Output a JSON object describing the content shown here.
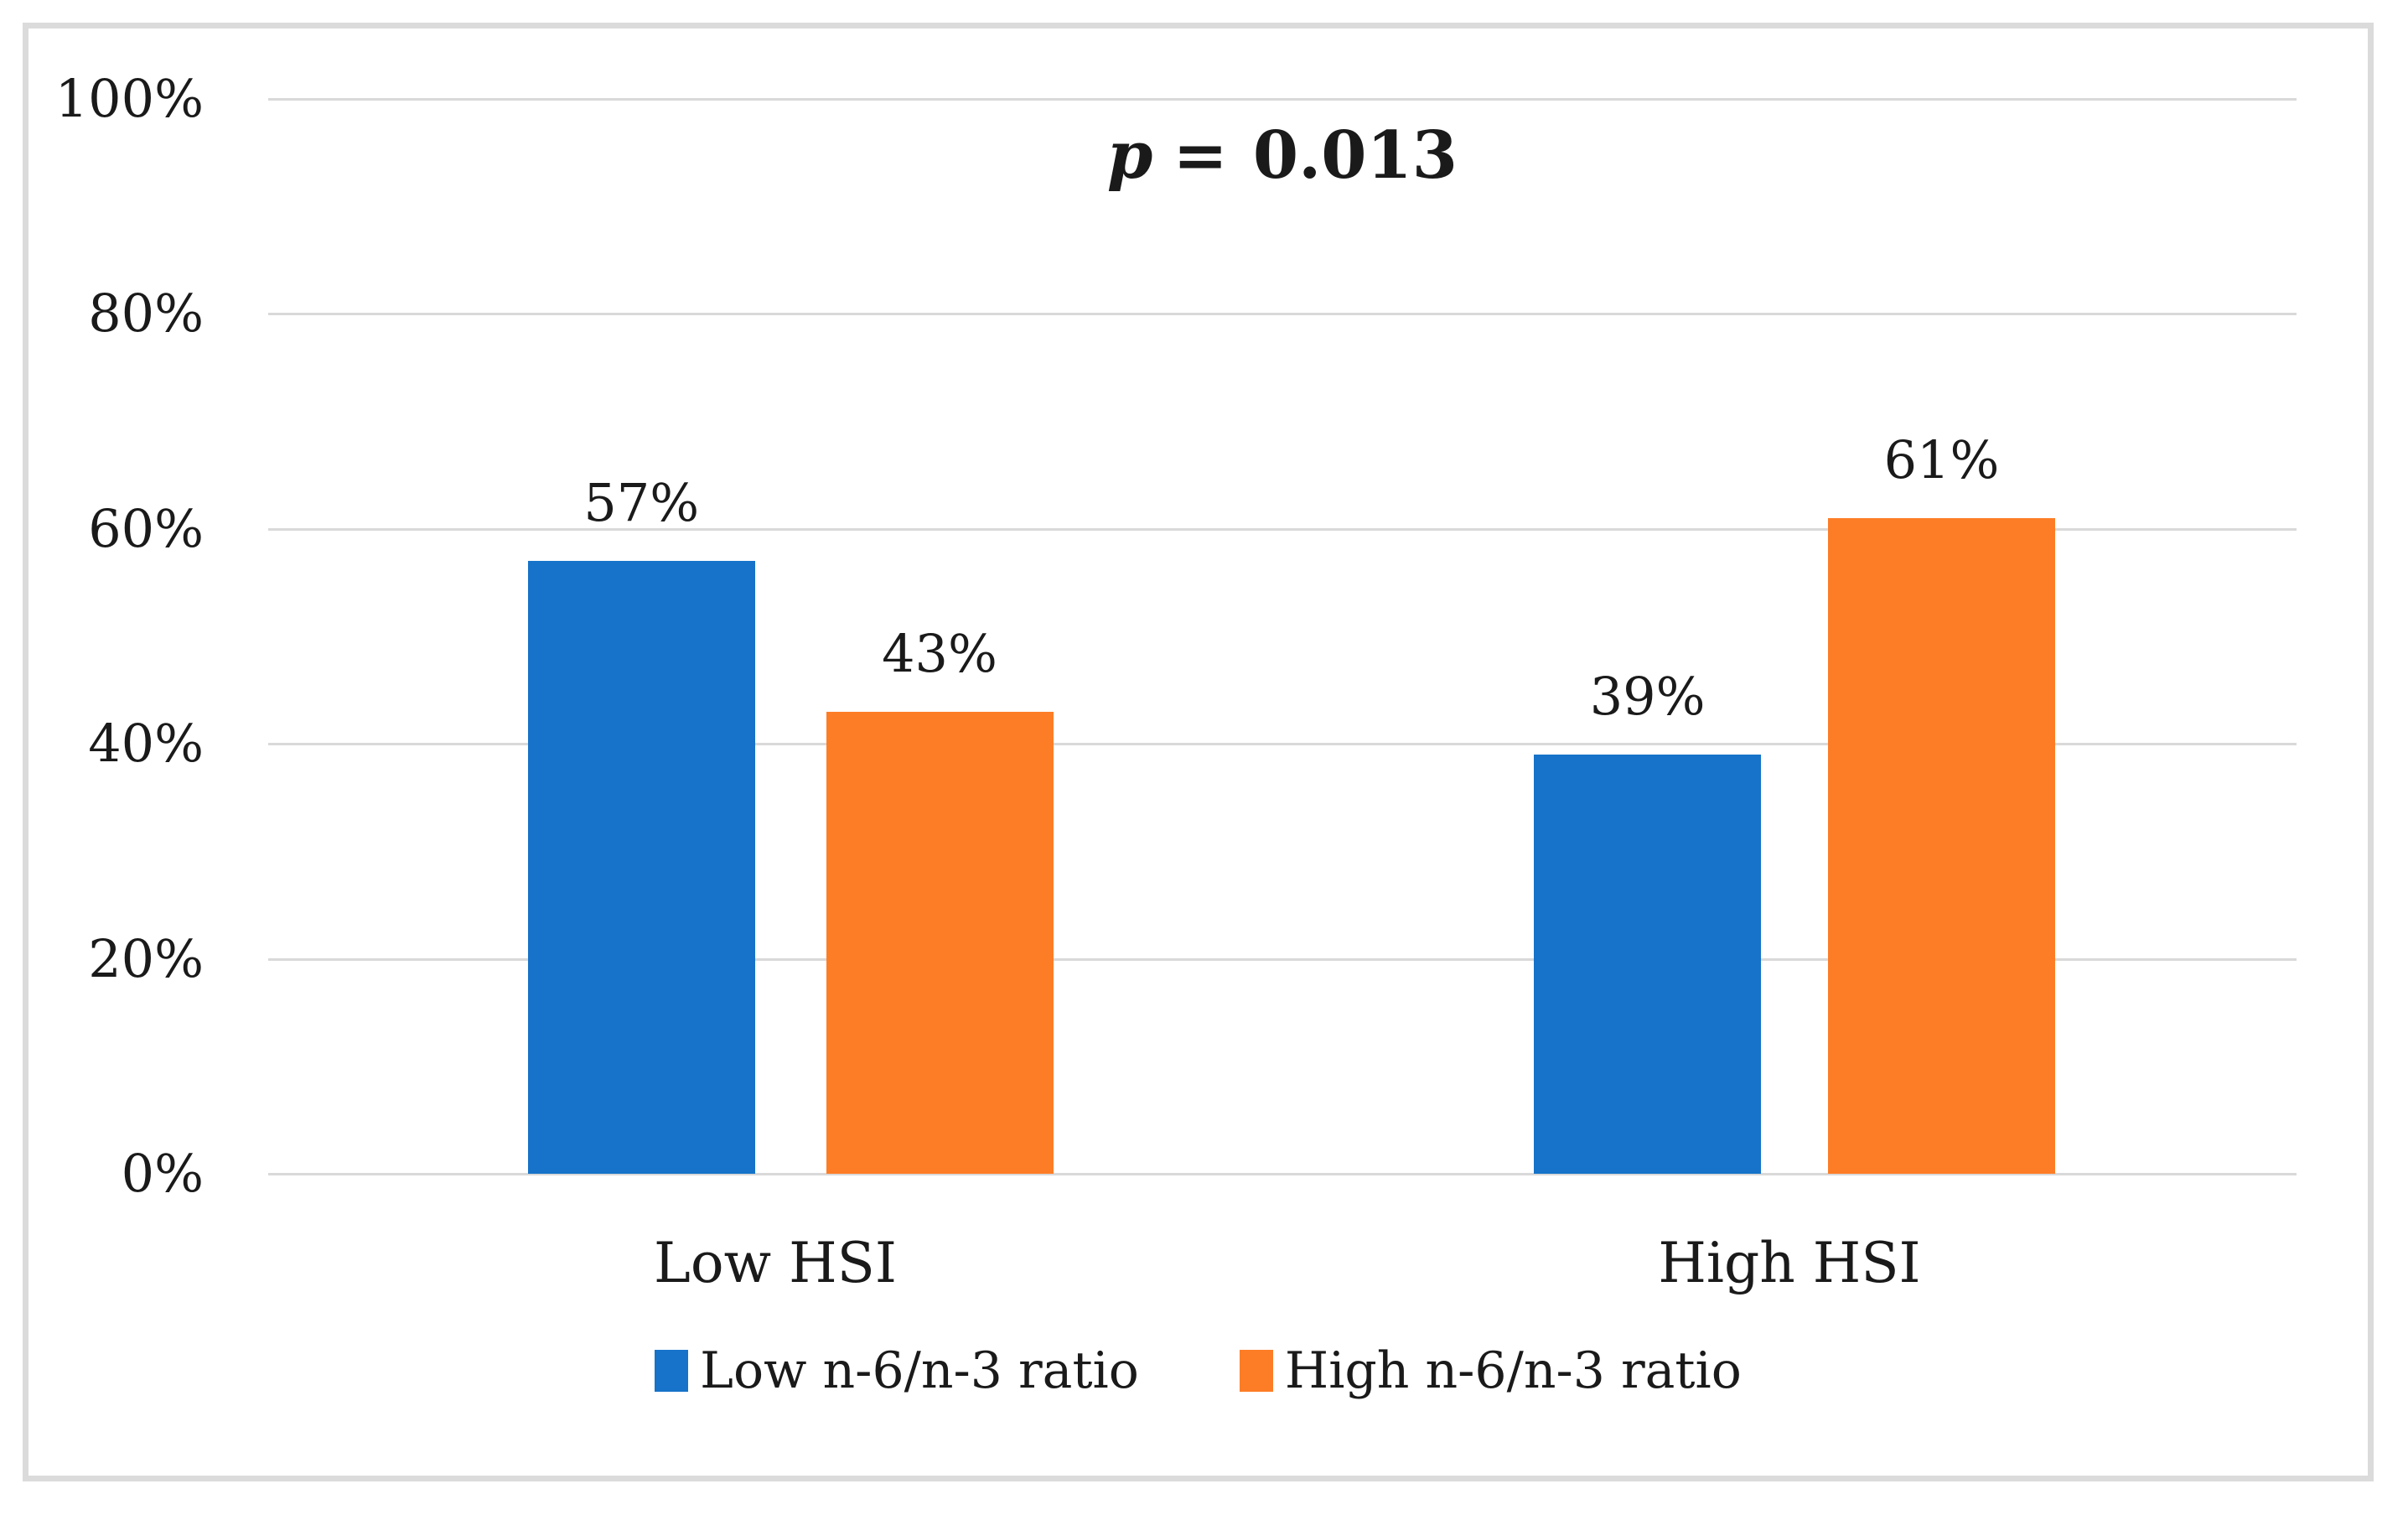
{
  "figure": {
    "background": "#FFFFFF",
    "border_color": "#DBDBDB",
    "text_color": "#1A1A1A"
  },
  "chart_data": {
    "type": "bar",
    "title": "",
    "xlabel": "",
    "ylabel": "",
    "annotation": {
      "variable": "p",
      "operator": "=",
      "value": "0.013"
    },
    "categories": [
      "Low HSI",
      "High HSI"
    ],
    "series": [
      {
        "name": "Low n-6/n-3 ratio",
        "color": "#1673C9",
        "values": [
          57,
          39
        ],
        "labels": [
          "57%",
          "39%"
        ]
      },
      {
        "name": "High n-6/n-3 ratio",
        "color": "#FD7D26",
        "values": [
          43,
          61
        ],
        "labels": [
          "43%",
          "61%"
        ]
      }
    ],
    "yticks": [
      "100%",
      "80%",
      "60%",
      "40%",
      "20%",
      "0%"
    ],
    "ylim": [
      0,
      100
    ],
    "value_suffix": "%",
    "grid": true,
    "gridline_color": "#D9D9D9",
    "legend_position": "bottom"
  }
}
